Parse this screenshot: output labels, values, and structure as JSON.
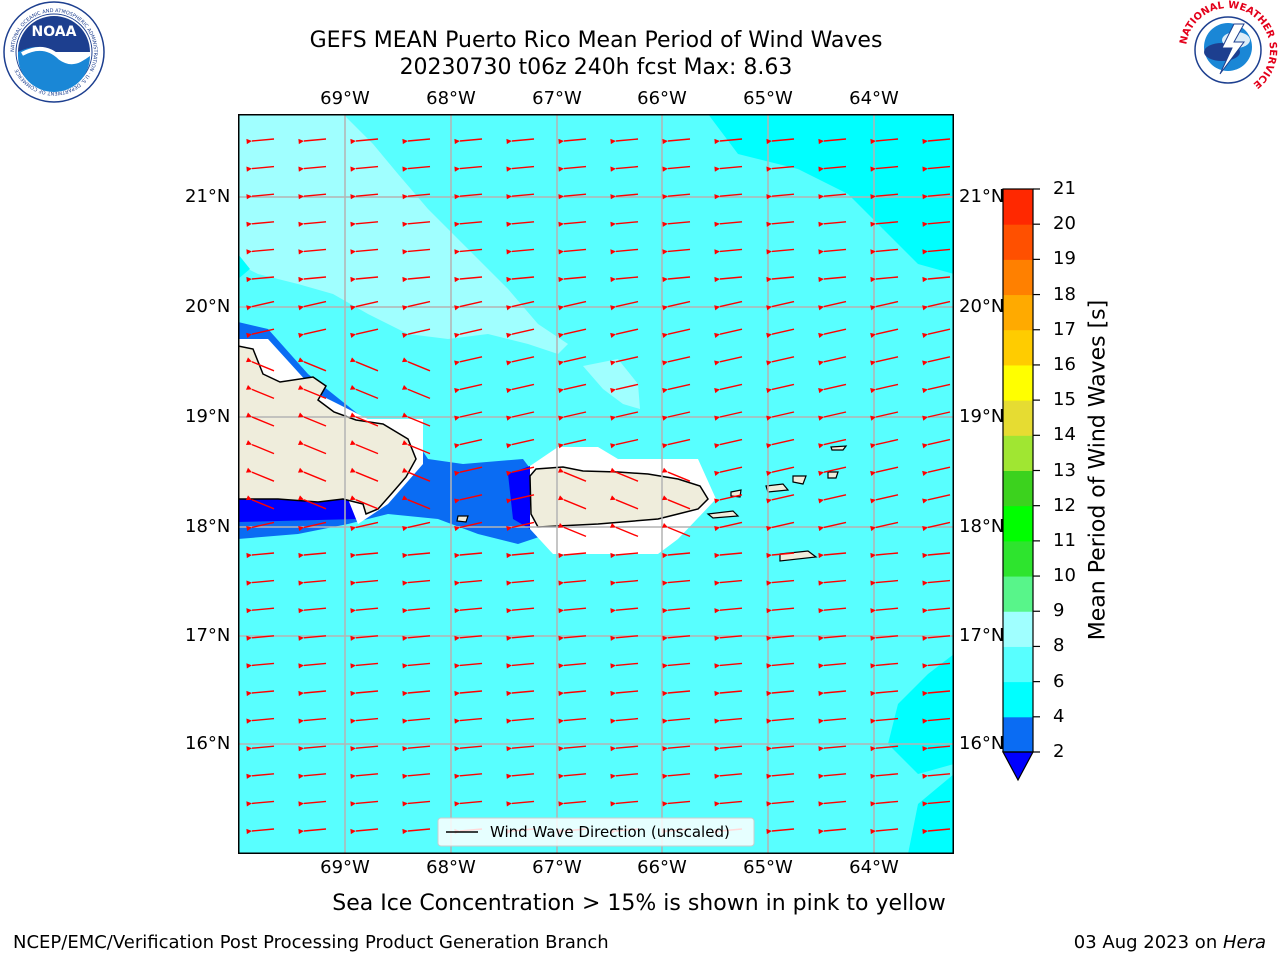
{
  "header": {
    "title_line1": "GEFS MEAN Puerto Rico Mean Period of Wind Waves",
    "title_line2": "20230730 t06z 240h fcst   Max: 8.63"
  },
  "logos": {
    "left": "NOAA",
    "left_ring": "NATIONAL OCEANIC AND ATMOSPHERIC ADMINISTRATION · U.S. DEPARTMENT OF COMMERCE",
    "right_ring": "NATIONAL WEATHER SERVICE"
  },
  "map": {
    "lon_labels": [
      "69°W",
      "68°W",
      "67°W",
      "66°W",
      "65°W",
      "64°W"
    ],
    "lat_labels": [
      "21°N",
      "20°N",
      "19°N",
      "18°N",
      "17°N",
      "16°N"
    ],
    "legend_text": "Wind Wave Direction (unscaled)",
    "arrow_color": "#ff0000",
    "land_color": "#efeddc"
  },
  "colorbar": {
    "label": "Mean Period of Wind Waves [s]",
    "ticks": [
      "2",
      "4",
      "6",
      "8",
      "9",
      "10",
      "11",
      "12",
      "13",
      "14",
      "15",
      "16",
      "17",
      "18",
      "19",
      "20",
      "21"
    ],
    "colors": [
      "#0000ff",
      "#0a6cf3",
      "#00ffff",
      "#58ffff",
      "#a0ffff",
      "#58f58a",
      "#2ee42e",
      "#00ff00",
      "#3cd21e",
      "#a0e632",
      "#e6dc32",
      "#ffff00",
      "#ffcc00",
      "#ffaa00",
      "#ff8000",
      "#ff5000",
      "#ff2800",
      "#ff0000"
    ]
  },
  "footer": {
    "note": "Sea Ice Concentration > 15% is shown in pink to yellow",
    "credit": "NCEP/EMC/Verification Post Processing Product Generation Branch",
    "date": "03 Aug 2023 on ",
    "host": "Hera"
  }
}
